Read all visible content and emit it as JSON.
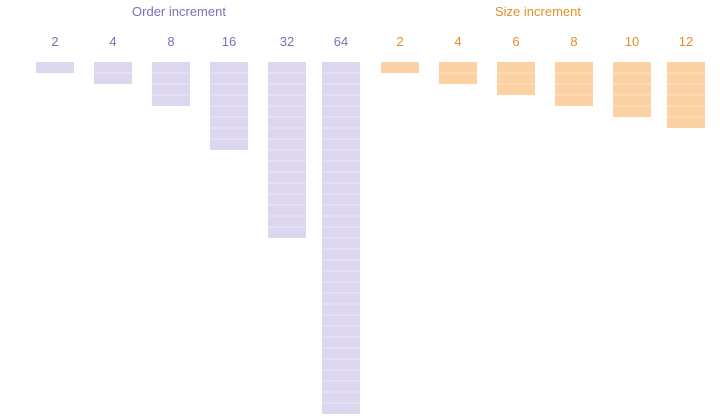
{
  "groups": [
    {
      "title": "Order increment",
      "color": "#7e6fb8",
      "fill": "#dcd6ee",
      "line": "#ebe8f6",
      "labels": [
        "2",
        "4",
        "8",
        "16",
        "32",
        "64"
      ],
      "units": [
        2,
        4,
        8,
        16,
        32,
        64
      ]
    },
    {
      "title": "Size increment",
      "color": "#e0902a",
      "fill": "#fcd1a3",
      "line": "#fde4c8",
      "labels": [
        "2",
        "4",
        "6",
        "8",
        "10",
        "12"
      ],
      "units": [
        2,
        4,
        6,
        8,
        10,
        12
      ]
    }
  ]
}
